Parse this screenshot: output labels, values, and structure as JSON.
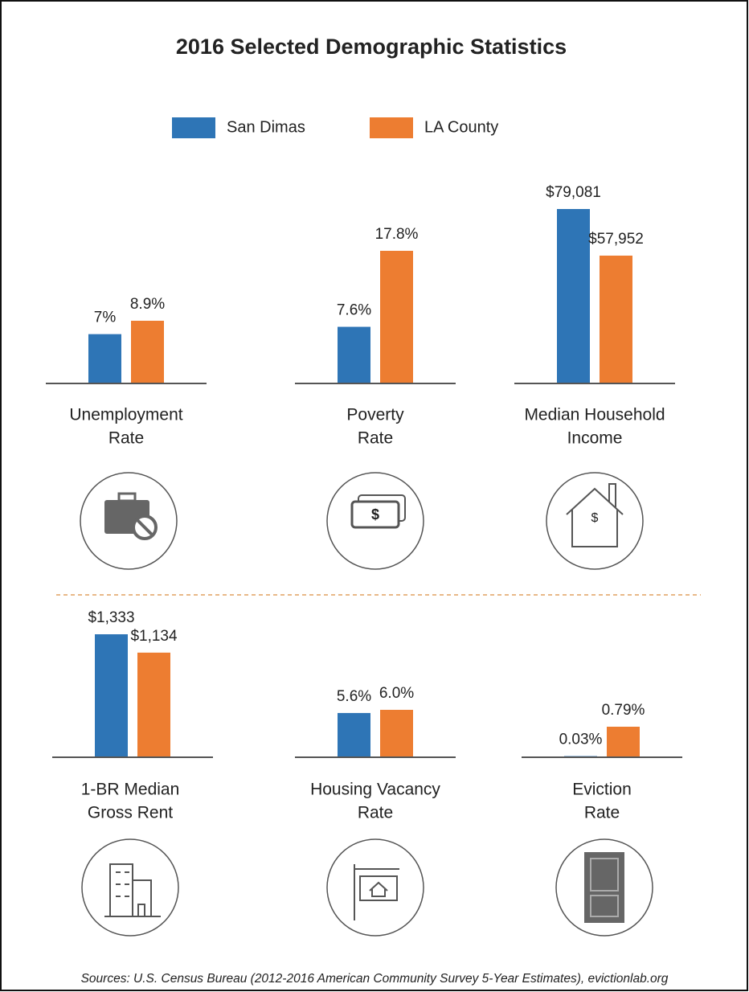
{
  "title": "2016 Selected Demographic Statistics",
  "source": "Sources: U.S. Census Bureau (2012-2016 American Community Survey 5-Year Estimates), evictionlab.org",
  "chart_data": [
    {
      "type": "bar",
      "label": [
        "Unemployment",
        "Rate"
      ],
      "series": [
        {
          "name": "San Dimas",
          "color": "#2e75b6",
          "values": [
            7
          ],
          "value_labels": [
            "7%"
          ]
        },
        {
          "name": "LA County",
          "color": "#ed7d31",
          "values": [
            8.9
          ],
          "value_labels": [
            "8.9%"
          ]
        }
      ]
    },
    {
      "type": "bar",
      "label": [
        "Poverty",
        "Rate"
      ],
      "series": [
        {
          "name": "San Dimas",
          "color": "#2e75b6",
          "values": [
            7.6
          ],
          "value_labels": [
            "7.6%"
          ]
        },
        {
          "name": "LA County",
          "color": "#ed7d31",
          "values": [
            17.8
          ],
          "value_labels": [
            "17.8%"
          ]
        }
      ]
    },
    {
      "type": "bar",
      "label": [
        "Median Household",
        "Income"
      ],
      "series": [
        {
          "name": "San Dimas",
          "color": "#2e75b6",
          "values": [
            79081
          ],
          "value_labels": [
            "$79,081"
          ]
        },
        {
          "name": "LA County",
          "color": "#ed7d31",
          "values": [
            57952
          ],
          "value_labels": [
            "$57,952"
          ]
        }
      ]
    },
    {
      "type": "bar",
      "label": [
        "1-BR Median",
        "Gross Rent"
      ],
      "series": [
        {
          "name": "San Dimas",
          "color": "#2e75b6",
          "values": [
            1333
          ],
          "value_labels": [
            "$1,333"
          ]
        },
        {
          "name": "LA County",
          "color": "#ed7d31",
          "values": [
            1134
          ],
          "value_labels": [
            "$1,134"
          ]
        }
      ]
    },
    {
      "type": "bar",
      "label": [
        "Housing Vacancy",
        "Rate"
      ],
      "series": [
        {
          "name": "San Dimas",
          "color": "#2e75b6",
          "values": [
            5.6
          ],
          "value_labels": [
            "5.6%"
          ]
        },
        {
          "name": "LA County",
          "color": "#ed7d31",
          "values": [
            6.0
          ],
          "value_labels": [
            "6.0%"
          ]
        }
      ]
    },
    {
      "type": "bar",
      "label": [
        "Eviction",
        "Rate"
      ],
      "series": [
        {
          "name": "San Dimas",
          "color": "#2e75b6",
          "values": [
            0.03
          ],
          "value_labels": [
            "0.03%"
          ]
        },
        {
          "name": "LA County",
          "color": "#ed7d31",
          "values": [
            0.79
          ],
          "value_labels": [
            "0.79%"
          ]
        }
      ]
    }
  ]
}
